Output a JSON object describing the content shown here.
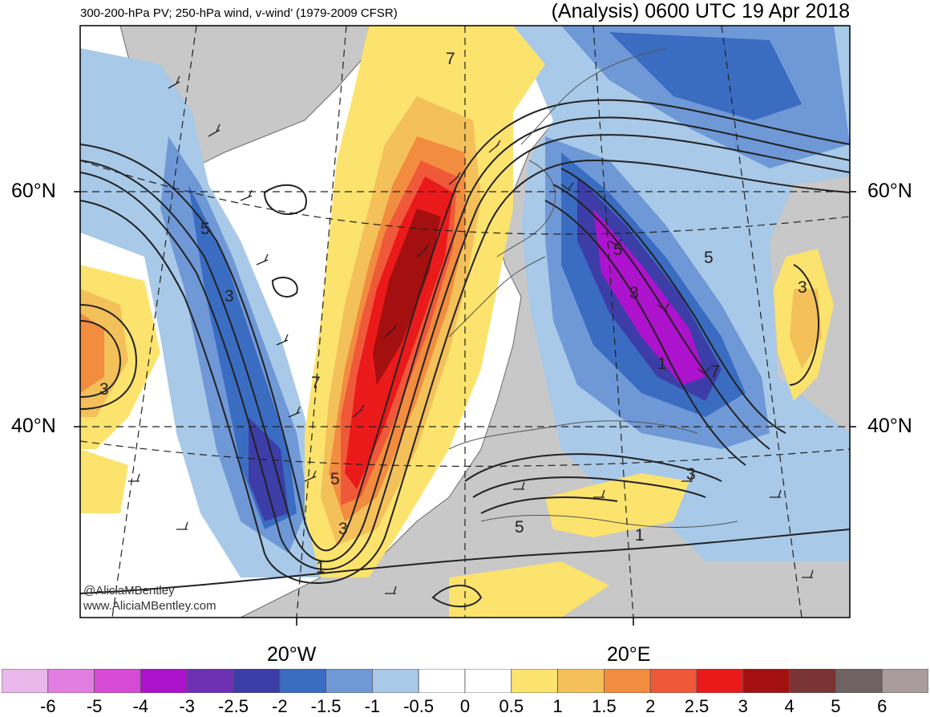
{
  "header": {
    "left_title": "300-200-hPa PV; 250-hPa wind, v-wind’ (1979-2009 CFSR)",
    "right_title": "(Analysis) 0600 UTC 19 Apr 2018"
  },
  "axes": {
    "lat_left": [
      "60°N",
      "40°N"
    ],
    "lat_right": [
      "60°N",
      "40°N"
    ],
    "lon_bottom": [
      "20°W",
      "20°E"
    ]
  },
  "credits": [
    "@AliciaMBentley",
    "www.AliciaMBentley.com"
  ],
  "contour_labels": [
    "7",
    "5",
    "3",
    "1",
    "3",
    "5",
    "7",
    "5",
    "3",
    "1",
    "3",
    "5",
    "7",
    "3",
    "5",
    "1",
    "3"
  ],
  "colorbar": {
    "ticks": [
      "-6",
      "-5",
      "-4",
      "-3",
      "-2.5",
      "-2",
      "-1.5",
      "-1",
      "-0.5",
      "0",
      "0.5",
      "1",
      "1.5",
      "2",
      "2.5",
      "3",
      "4",
      "5",
      "6"
    ],
    "colors": [
      "#e9b7e9",
      "#e27de2",
      "#d64ad6",
      "#ad12cc",
      "#6e30b4",
      "#3d3da8",
      "#3a6cc2",
      "#6f98d6",
      "#a8c9e8",
      "#ffffff",
      "#ffffff",
      "#fbe36e",
      "#f4c05a",
      "#f28c3f",
      "#f0583a",
      "#ea1a1a",
      "#a40f0f",
      "#7a3434",
      "#6e6262",
      "#a99c9c"
    ]
  }
}
